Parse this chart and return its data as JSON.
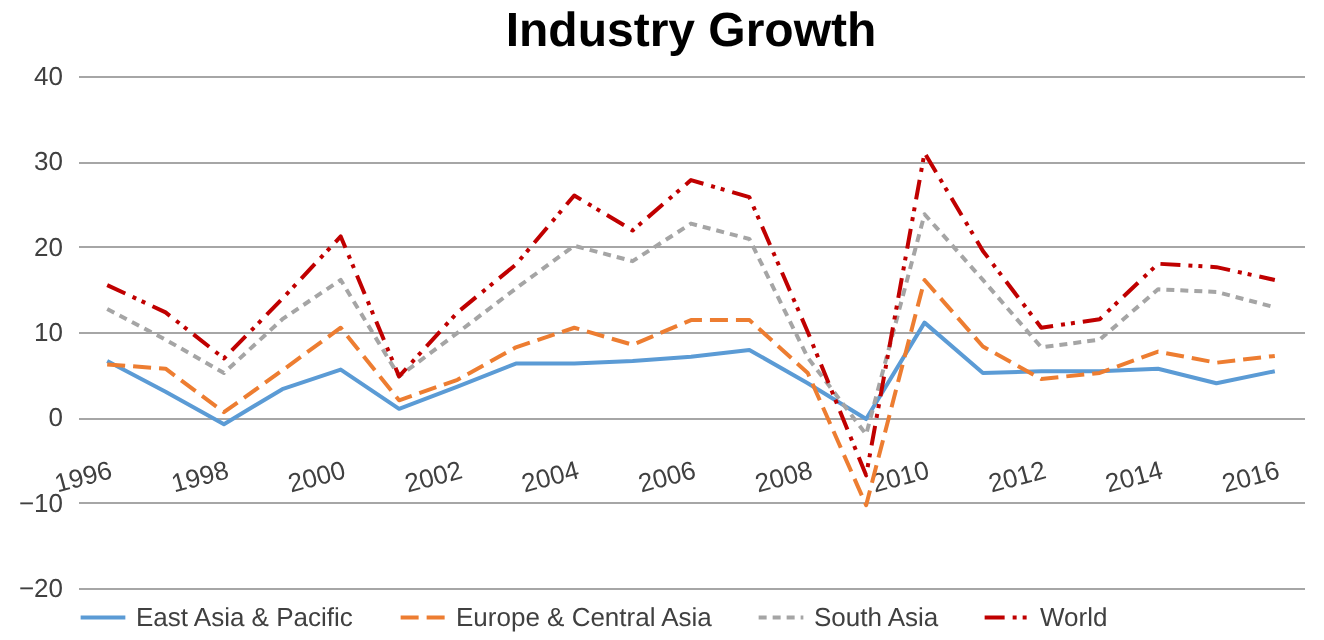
{
  "chart_data": {
    "type": "line",
    "title": "Industry Growth",
    "categories": [
      "1996",
      null,
      "1998",
      null,
      "2000",
      null,
      "2002",
      null,
      "2004",
      null,
      "2006",
      null,
      "2008",
      null,
      "2010",
      null,
      "2012",
      null,
      "2014",
      null,
      "2016"
    ],
    "series": [
      {
        "name": "East Asia & Pacific",
        "color": "#5b9bd5",
        "line_style": "solid",
        "values": [
          6.6,
          3,
          -0.8,
          3.3,
          5.6,
          1.0,
          3.6,
          6.3,
          6.3,
          6.6,
          7.1,
          7.9,
          4.0,
          -0.2,
          11.1,
          5.2,
          5.4,
          5.4,
          5.7,
          4.0,
          5.4
        ]
      },
      {
        "name": "Europe & Central Asia",
        "color": "#ed7d31",
        "line_style": "dashed",
        "values": [
          6.2,
          5.7,
          0.6,
          5.5,
          10.5,
          2.0,
          4.4,
          8.2,
          10.5,
          8.5,
          11.4,
          11.4,
          5.2,
          -10.3,
          16.1,
          8.3,
          4.5,
          5.2,
          7.7,
          6.4,
          7.2
        ]
      },
      {
        "name": "South Asia",
        "color": "#a5a5a5",
        "line_style": "dotted",
        "values": [
          12.7,
          9.1,
          5.2,
          11.5,
          16.1,
          4.8,
          9.9,
          15.1,
          20.1,
          18.3,
          22.7,
          20.9,
          7,
          -2.0,
          23.8,
          16.1,
          8.2,
          9.1,
          15.0,
          14.7,
          12.9
        ]
      },
      {
        "name": "World",
        "color": "#c00000",
        "line_style": "dashdot",
        "values": [
          15.5,
          12.3,
          6.9,
          13.9,
          21.2,
          4.8,
          12.3,
          17.9,
          26.0,
          21.9,
          27.8,
          25.8,
          10,
          -6.8,
          31.0,
          19.5,
          10.5,
          11.5,
          18.0,
          17.6,
          16.1
        ]
      }
    ],
    "ylim": [
      -20,
      40
    ],
    "yticks": [
      -20,
      -10,
      0,
      10,
      20,
      30,
      40
    ],
    "grid": "y",
    "legend": "bottom"
  }
}
